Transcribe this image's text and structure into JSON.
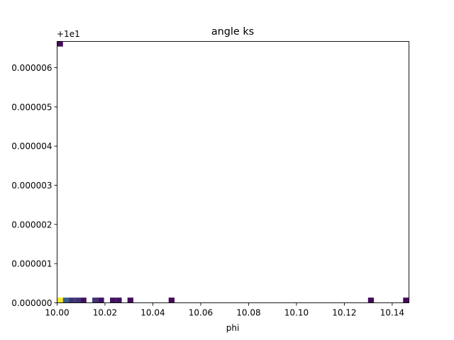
{
  "chart_data": {
    "type": "heatmap",
    "title": "angle ks",
    "xlabel": "phi",
    "ylabel": "",
    "xlim": [
      10.0,
      10.147
    ],
    "ylim": [
      0.0,
      6.67e-06
    ],
    "y_offset_label": "+1e1",
    "x_ticks": [
      10.0,
      10.02,
      10.04,
      10.06,
      10.08,
      10.1,
      10.12,
      10.14
    ],
    "x_tick_labels": [
      "10.00",
      "10.02",
      "10.04",
      "10.06",
      "10.08",
      "10.10",
      "10.12",
      "10.14"
    ],
    "y_ticks": [
      0.0,
      1e-06,
      2e-06,
      3e-06,
      4e-06,
      5e-06,
      6e-06
    ],
    "y_tick_labels": [
      "0.000000",
      "0.000001",
      "0.000002",
      "0.000003",
      "0.000004",
      "0.000005",
      "0.000006"
    ],
    "grid": false,
    "colormap": "viridis",
    "bin_width_x": 0.00245,
    "bin_height_y": 1.33e-07,
    "cells": [
      {
        "x": 10.0,
        "y": 0.0,
        "count": 1.0
      },
      {
        "x": 10.00245,
        "y": 0.0,
        "count": 0.3
      },
      {
        "x": 10.0049,
        "y": 0.0,
        "count": 0.15
      },
      {
        "x": 10.00735,
        "y": 0.0,
        "count": 0.15
      },
      {
        "x": 10.0098,
        "y": 0.0,
        "count": 0.05
      },
      {
        "x": 10.0147,
        "y": 0.0,
        "count": 0.15
      },
      {
        "x": 10.01715,
        "y": 0.0,
        "count": 0.05
      },
      {
        "x": 10.0221,
        "y": 0.0,
        "count": 0.05
      },
      {
        "x": 10.02455,
        "y": 0.0,
        "count": 0.05
      },
      {
        "x": 10.0294,
        "y": 0.0,
        "count": 0.03
      },
      {
        "x": 10.0466,
        "y": 0.0,
        "count": 0.03
      },
      {
        "x": 10.1299,
        "y": 0.0,
        "count": 0.03
      },
      {
        "x": 10.14455,
        "y": 0.0,
        "count": 0.03
      },
      {
        "x": 10.0,
        "y": 6.54e-06,
        "count": 0.03
      }
    ],
    "colors": {
      "axes": "#000000",
      "background": "#ffffff"
    }
  }
}
